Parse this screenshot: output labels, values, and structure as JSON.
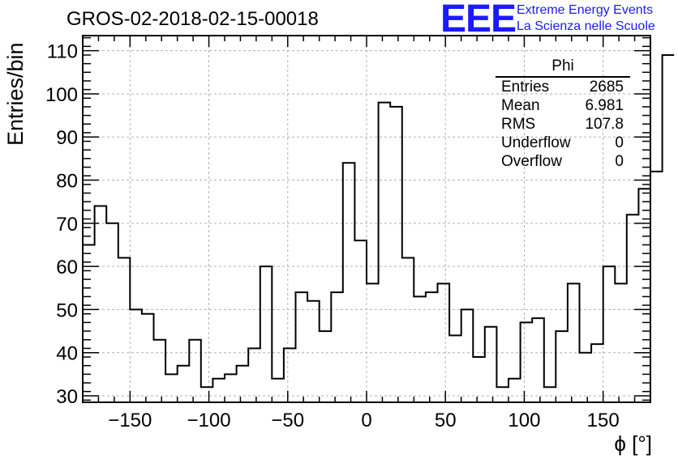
{
  "header": {
    "title": "GROS-02-2018-02-15-00018",
    "logo_text": "EEE",
    "logo_line1": "Extreme Energy Events",
    "logo_line2": "La Scienza nelle Scuole"
  },
  "stats": {
    "name": "Phi",
    "rows": [
      {
        "label": "Entries",
        "value": "2685"
      },
      {
        "label": "Mean",
        "value": "6.981"
      },
      {
        "label": "RMS",
        "value": "107.8"
      },
      {
        "label": "Underflow",
        "value": "0"
      },
      {
        "label": "Overflow",
        "value": "0"
      }
    ]
  },
  "chart_data": {
    "type": "bar",
    "style": "histogram-step",
    "title": "GROS-02-2018-02-15-00018",
    "xlabel": "ϕ [°]",
    "ylabel": "Entries/bin",
    "xlim": [
      -180,
      180
    ],
    "ylim": [
      28.5,
      113.5
    ],
    "grid": true,
    "bin_width": 7.5,
    "bin_edges_start": -180,
    "values": [
      65,
      74,
      70,
      62,
      50,
      49,
      43,
      35,
      37,
      43,
      32,
      34,
      35,
      37,
      41,
      60,
      34,
      41,
      54,
      52,
      45,
      54,
      84,
      66,
      56,
      98,
      97,
      62,
      53,
      54,
      56,
      44,
      50,
      39,
      46,
      32,
      34,
      47,
      48,
      32,
      45,
      56,
      40,
      42,
      60,
      56,
      72,
      78,
      82,
      109
    ],
    "xticks": [
      -150,
      -100,
      -50,
      0,
      50,
      100,
      150
    ],
    "xtick_labels": [
      "−150",
      "−100",
      "−50",
      "0",
      "50",
      "100",
      "150"
    ],
    "yticks": [
      30,
      40,
      50,
      60,
      70,
      80,
      90,
      100,
      110
    ],
    "ytick_labels": [
      "30",
      "40",
      "50",
      "60",
      "70",
      "80",
      "90",
      "100",
      "110"
    ]
  }
}
